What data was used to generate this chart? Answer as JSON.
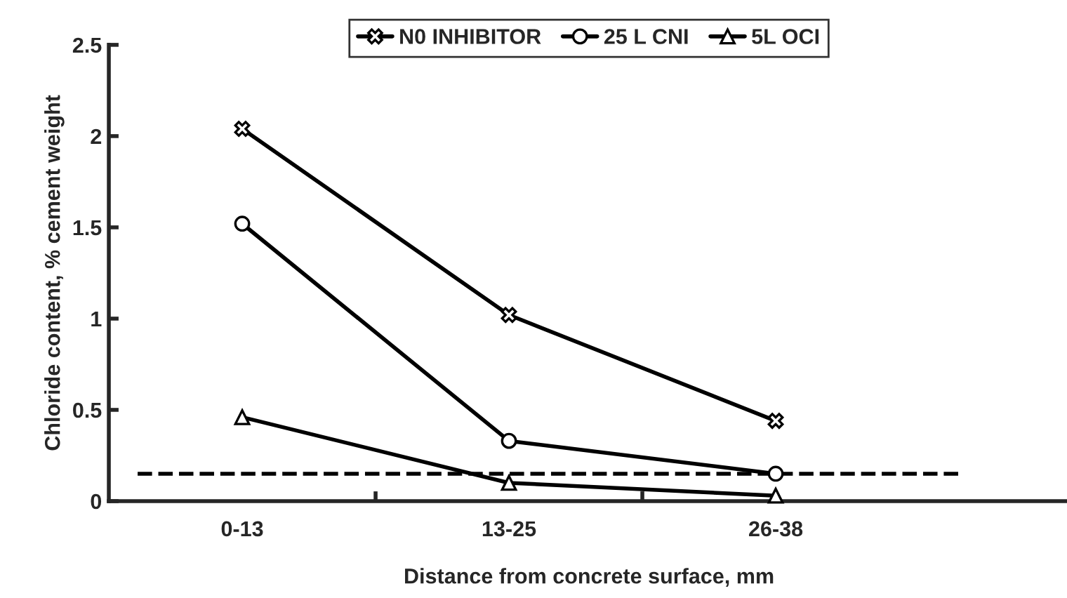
{
  "chart_data": {
    "type": "line",
    "xlabel": "Distance from concrete surface, mm",
    "ylabel": "Chloride content, % cement weight",
    "categories": [
      "0-13",
      "13-25",
      "26-38"
    ],
    "series": [
      {
        "name": "N0 INHIBITOR",
        "color": "#000000",
        "marker": "cross",
        "values": [
          2.04,
          1.02,
          0.44
        ]
      },
      {
        "name": "25 L CNI",
        "color": "#000000",
        "marker": "circle",
        "values": [
          1.52,
          0.33,
          0.15
        ]
      },
      {
        "name": "5L OCI",
        "color": "#000000",
        "marker": "triangle",
        "values": [
          0.46,
          0.1,
          0.03
        ]
      }
    ],
    "ylim": [
      0,
      2.5
    ],
    "yticks": [
      0,
      0.5,
      1,
      1.5,
      2,
      2.5
    ],
    "ref_lines": [
      {
        "axis": "y",
        "value": 0.15,
        "label": null,
        "color": "#000000",
        "line_style": "dashed"
      }
    ],
    "grid": false,
    "legend": "top",
    "line_style": "solid"
  }
}
